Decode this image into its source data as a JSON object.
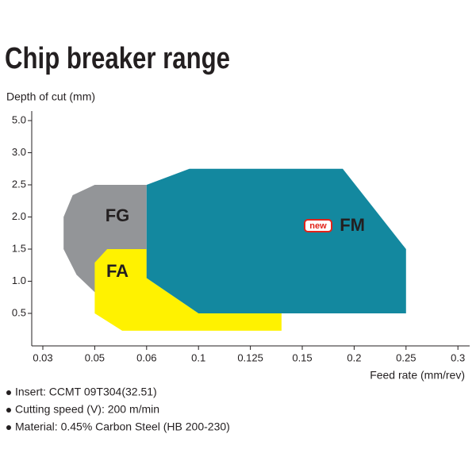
{
  "chart_data": {
    "type": "region",
    "title": "Chip breaker range",
    "y_label": "Depth of cut (mm)",
    "x_label": "Feed rate (mm/rev)",
    "xticks": [
      0.03,
      0.05,
      0.06,
      0.1,
      0.125,
      0.15,
      0.2,
      0.25,
      0.3
    ],
    "yticks": [
      {
        "value": 0.5,
        "label": "0.5"
      },
      {
        "value": 1,
        "label": "1.0"
      },
      {
        "value": 1.5,
        "label": "1.5"
      },
      {
        "value": 2,
        "label": "2.0"
      },
      {
        "value": 2.5,
        "label": "2.5"
      },
      {
        "value": 3,
        "label": "3.0"
      },
      {
        "value": 5,
        "label": "5.0"
      }
    ],
    "regions": [
      {
        "name": "FG",
        "color": "#939598",
        "x": [
          0.05,
          0.06,
          0.06,
          0.05,
          0.043,
          0.038,
          0.038,
          0.0415
        ],
        "y": [
          2.5,
          2.5,
          0.83,
          0.83,
          1.1,
          1.5,
          2.0,
          2.34
        ]
      },
      {
        "name": "FA",
        "color": "#fff200",
        "x": [
          0.0524,
          0.06,
          0.06,
          0.1,
          0.14,
          0.14,
          0.0553,
          0.05,
          0.05
        ],
        "y": [
          1.5,
          1.5,
          1.05,
          0.5,
          0.5,
          0.23,
          0.23,
          0.5,
          1.29
        ]
      },
      {
        "name": "FM",
        "badge": "new",
        "color": "#13889f",
        "x": [
          0.06,
          0.093,
          0.189,
          0.25,
          0.25,
          0.1,
          0.06
        ],
        "y": [
          2.5,
          2.75,
          2.75,
          1.5,
          0.5,
          0.5,
          1.05
        ]
      }
    ],
    "notes": [
      "Insert: CCMT 09T304(32.51)",
      "Cutting speed (V): 200 m/min",
      "Material: 0.45% Carbon Steel (HB 200-230)"
    ]
  }
}
